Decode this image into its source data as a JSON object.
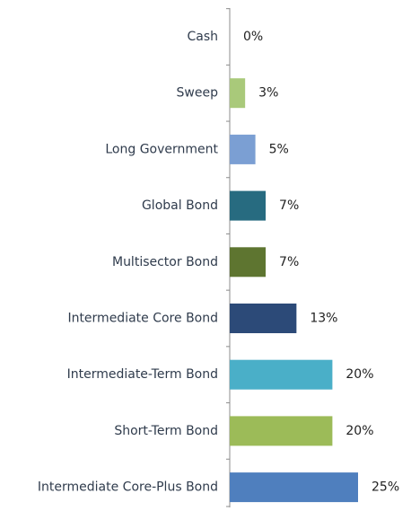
{
  "chart_data": {
    "type": "bar",
    "orientation": "horizontal",
    "title": "",
    "xlabel": "",
    "ylabel": "",
    "value_suffix": "%",
    "xlim": [
      0,
      25
    ],
    "grid": false,
    "legend": "none",
    "categories": [
      "Cash",
      "Sweep",
      "Long Government",
      "Global Bond",
      "Multisector Bond",
      "Intermediate Core Bond",
      "Intermediate-Term Bond",
      "Short-Term Bond",
      "Intermediate Core-Plus Bond"
    ],
    "values": [
      0,
      3,
      5,
      7,
      7,
      13,
      20,
      20,
      25
    ],
    "value_labels": [
      "0%",
      "3%",
      "5%",
      "7%",
      "7%",
      "13%",
      "20%",
      "20%",
      "25%"
    ],
    "colors": [
      "#5b7fbd",
      "#a9c97a",
      "#7b9fd3",
      "#276b80",
      "#5e7530",
      "#2c4a78",
      "#4aafc8",
      "#9cbb58",
      "#4f7fbe"
    ],
    "label_color": "#2f3b4c",
    "axis_color": "#8c8c8c"
  }
}
